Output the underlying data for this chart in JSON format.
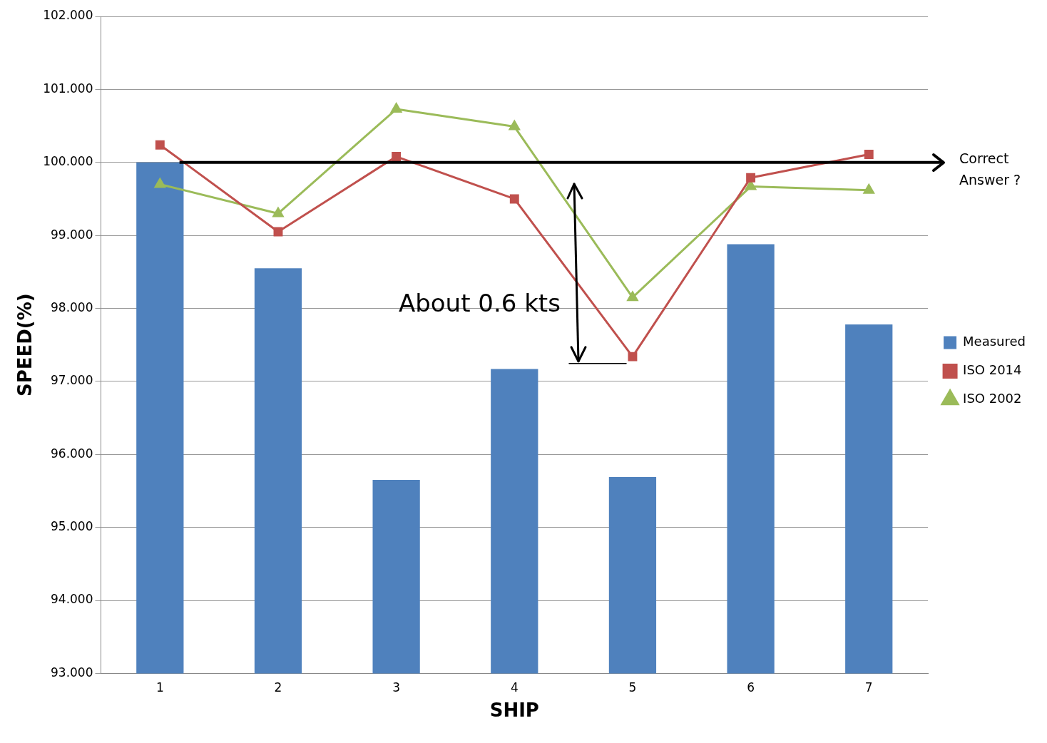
{
  "chart_data": {
    "type": "bar",
    "xlabel": "SHIP",
    "ylabel": "SPEED(%)",
    "categories": [
      "1",
      "2",
      "3",
      "4",
      "5",
      "6",
      "7"
    ],
    "series": [
      {
        "name": "Measured",
        "color": "#4f81bd",
        "values": [
          100.0,
          98.55,
          95.65,
          97.17,
          95.69,
          98.88,
          97.78
        ]
      },
      {
        "name": "ISO 2014",
        "type": "line",
        "color": "#c0504d",
        "marker": "square",
        "values": [
          100.24,
          99.05,
          100.08,
          99.5,
          97.34,
          99.79,
          100.11
        ]
      },
      {
        "name": "ISO 2002",
        "type": "line",
        "color": "#9bbb59",
        "marker": "triangle",
        "values": [
          99.7,
          99.3,
          100.73,
          100.49,
          98.15,
          99.67,
          99.62
        ]
      }
    ],
    "ylim": [
      93,
      102
    ],
    "yticks": [
      {
        "value": 93,
        "label": "93.000"
      },
      {
        "value": 94,
        "label": "94.000"
      },
      {
        "value": 95,
        "label": "95.000"
      },
      {
        "value": 96,
        "label": "96.000"
      },
      {
        "value": 97,
        "label": "97.000"
      },
      {
        "value": 98,
        "label": "98.000"
      },
      {
        "value": 99,
        "label": "99.000"
      },
      {
        "value": 100,
        "label": "100.000"
      },
      {
        "value": 101,
        "label": "101.000"
      },
      {
        "value": 102,
        "label": "102.000"
      }
    ],
    "ref_lines": [
      {
        "axis": "y",
        "value": 100,
        "label": "Correct Answer ?",
        "color": "#000000"
      }
    ],
    "annotations": [
      "About 0.6 kts"
    ],
    "grid": "y",
    "legend": "right"
  }
}
